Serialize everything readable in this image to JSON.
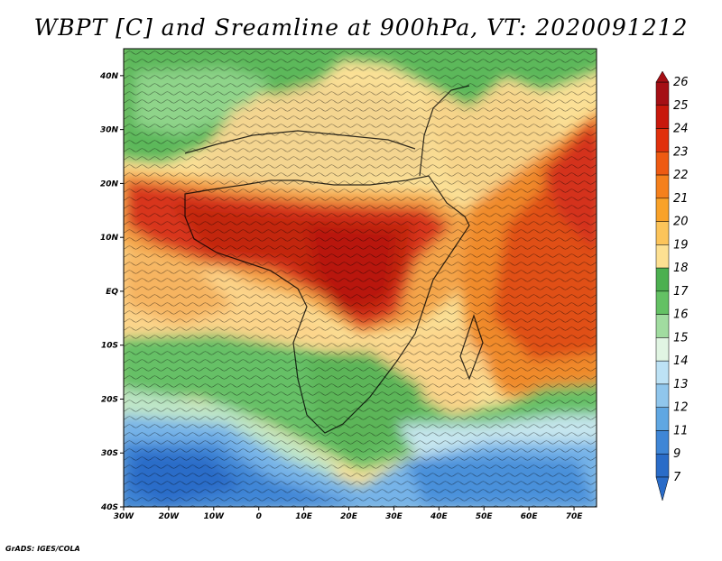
{
  "title": "WBPT [C] and Sreamline at 900hPa, VT: 2020091212",
  "credit": "GrADS: IGES/COLA",
  "map": {
    "variable": "WBPT [C]",
    "level": "900hPa",
    "valid_time": "2020091212",
    "lon_range": [
      -30,
      75
    ],
    "lat_range": [
      -40,
      45
    ],
    "lon_ticks": [
      {
        "value": -30,
        "label": "30W"
      },
      {
        "value": -20,
        "label": "20W"
      },
      {
        "value": -10,
        "label": "10W"
      },
      {
        "value": 0,
        "label": "0"
      },
      {
        "value": 10,
        "label": "10E"
      },
      {
        "value": 20,
        "label": "20E"
      },
      {
        "value": 30,
        "label": "30E"
      },
      {
        "value": 40,
        "label": "40E"
      },
      {
        "value": 50,
        "label": "50E"
      },
      {
        "value": 60,
        "label": "60E"
      },
      {
        "value": 70,
        "label": "70E"
      }
    ],
    "lat_ticks": [
      {
        "value": 40,
        "label": "40N"
      },
      {
        "value": 30,
        "label": "30N"
      },
      {
        "value": 20,
        "label": "20N"
      },
      {
        "value": 10,
        "label": "10N"
      },
      {
        "value": 0,
        "label": "EQ"
      },
      {
        "value": -10,
        "label": "10S"
      },
      {
        "value": -20,
        "label": "20S"
      },
      {
        "value": -30,
        "label": "30S"
      },
      {
        "value": -40,
        "label": "40S"
      }
    ]
  },
  "colorbar": {
    "labels": [
      "26",
      "25",
      "24",
      "23",
      "22",
      "21",
      "20",
      "19",
      "18",
      "17",
      "16",
      "15",
      "14",
      "13",
      "12",
      "11",
      "9",
      "7"
    ],
    "colors": [
      "#a50f15",
      "#c8180c",
      "#e0300c",
      "#ee5a12",
      "#f5801c",
      "#f9a229",
      "#fcc45a",
      "#fde092",
      "#4cb050",
      "#64c164",
      "#a1dca0",
      "#e1f5e3",
      "#bde2f5",
      "#90c6ec",
      "#60a7e2",
      "#3f86d6",
      "#2a6cc8"
    ]
  }
}
